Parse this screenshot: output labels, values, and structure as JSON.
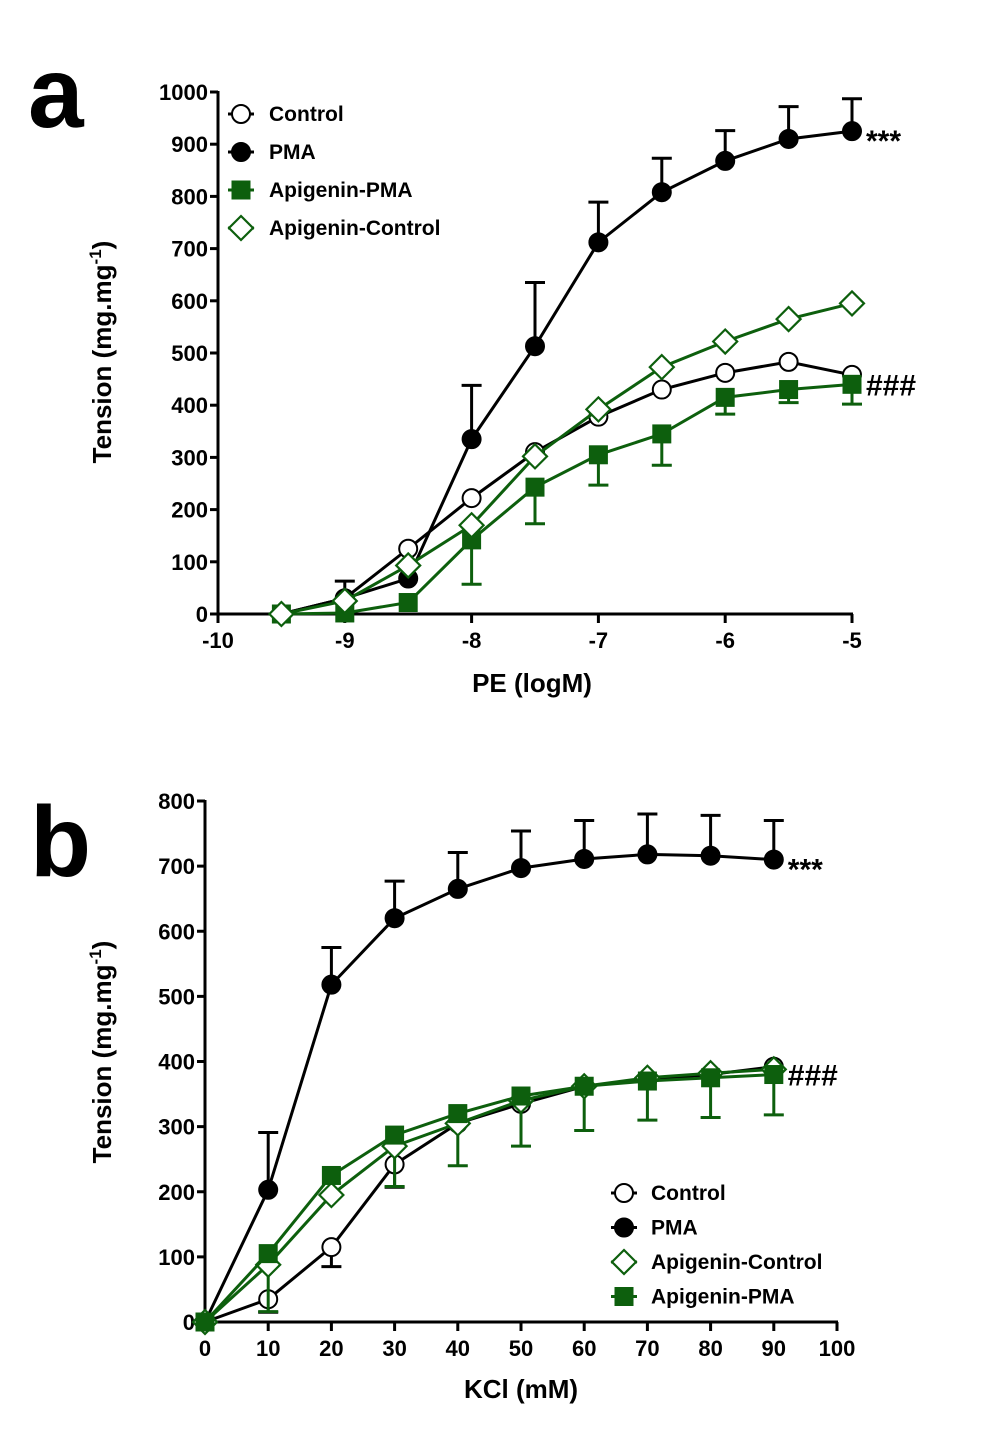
{
  "colors": {
    "black": "#000000",
    "green": "#0d5f0d",
    "white": "#ffffff"
  },
  "chart_data": [
    {
      "id": "a",
      "type": "line",
      "panel_label": "a",
      "xlabel": "PE (logM)",
      "ylabel": "Tension (mg.mg",
      "ylabel_sup": "-1",
      "ylabel_close": ")",
      "xlim": [
        -10,
        -5
      ],
      "ylim": [
        0,
        1000
      ],
      "xticks": [
        -10,
        -9,
        -8,
        -7,
        -6,
        -5
      ],
      "xtick_labels": [
        "-10",
        "-9",
        "-8",
        "-7",
        "-6",
        "-5"
      ],
      "yticks": [
        0,
        100,
        200,
        300,
        400,
        500,
        600,
        700,
        800,
        900,
        1000
      ],
      "ytick_labels": [
        "0",
        "100",
        "200",
        "300",
        "400",
        "500",
        "600",
        "700",
        "800",
        "900",
        "1000"
      ],
      "grid": false,
      "legend_position": "top-left",
      "legend_order": [
        "Control",
        "PMA",
        "Apigenin-PMA",
        "Apigenin-Control"
      ],
      "x": [
        -9.5,
        -9,
        -8.5,
        -8,
        -7.5,
        -7,
        -6.5,
        -6,
        -5.5,
        -5
      ],
      "series": [
        {
          "name": "Control",
          "marker": "circle-open",
          "color": "#000000",
          "values": [
            0,
            30,
            125,
            222,
            310,
            378,
            430,
            462,
            483,
            458
          ],
          "error": [
            0,
            0,
            0,
            0,
            0,
            0,
            0,
            0,
            0,
            0
          ],
          "error_dir": "up"
        },
        {
          "name": "PMA",
          "marker": "circle-filled",
          "color": "#000000",
          "values": [
            0,
            30,
            68,
            335,
            513,
            712,
            808,
            868,
            910,
            925
          ],
          "error": [
            0,
            33,
            0,
            103,
            122,
            77,
            65,
            58,
            62,
            62
          ],
          "error_dir": "up"
        },
        {
          "name": "Apigenin-PMA",
          "marker": "square-filled",
          "color": "#0d5f0d",
          "values": [
            0,
            2,
            22,
            142,
            243,
            305,
            345,
            415,
            430,
            440
          ],
          "error": [
            0,
            0,
            0,
            85,
            70,
            58,
            60,
            32,
            25,
            38
          ],
          "error_dir": "down"
        },
        {
          "name": "Apigenin-Control",
          "marker": "diamond-open",
          "color": "#0d5f0d",
          "values": [
            0,
            25,
            93,
            170,
            302,
            392,
            473,
            522,
            565,
            595
          ],
          "error": [
            0,
            0,
            0,
            0,
            0,
            0,
            0,
            0,
            0,
            0
          ],
          "error_dir": "down"
        }
      ],
      "annotations": [
        {
          "text": "***",
          "series": "PMA"
        },
        {
          "text": "###",
          "series": "Apigenin-PMA"
        }
      ]
    },
    {
      "id": "b",
      "type": "line",
      "panel_label": "b",
      "xlabel": "KCl (mM)",
      "ylabel": "Tension (mg.mg",
      "ylabel_sup": "-1",
      "ylabel_close": ")",
      "xlim": [
        0,
        100
      ],
      "ylim": [
        0,
        800
      ],
      "xticks": [
        0,
        10,
        20,
        30,
        40,
        50,
        60,
        70,
        80,
        90,
        100
      ],
      "xtick_labels": [
        "0",
        "10",
        "20",
        "30",
        "40",
        "50",
        "60",
        "70",
        "80",
        "90",
        "100"
      ],
      "yticks": [
        0,
        100,
        200,
        300,
        400,
        500,
        600,
        700,
        800
      ],
      "ytick_labels": [
        "0",
        "100",
        "200",
        "300",
        "400",
        "500",
        "600",
        "700",
        "800"
      ],
      "grid": false,
      "legend_position": "bottom-right",
      "legend_order": [
        "Control",
        "PMA",
        "Apigenin-Control",
        "Apigenin-PMA"
      ],
      "x": [
        0,
        10,
        20,
        30,
        40,
        50,
        60,
        70,
        80,
        90
      ],
      "series": [
        {
          "name": "Control",
          "marker": "circle-open",
          "color": "#000000",
          "values": [
            0,
            35,
            115,
            242,
            305,
            335,
            362,
            372,
            380,
            392
          ],
          "error": [
            0,
            20,
            30,
            35,
            0,
            0,
            0,
            0,
            0,
            0
          ],
          "error_dir": "down"
        },
        {
          "name": "PMA",
          "marker": "circle-filled",
          "color": "#000000",
          "values": [
            0,
            203,
            518,
            620,
            665,
            697,
            711,
            718,
            716,
            710
          ],
          "error": [
            0,
            88,
            57,
            57,
            56,
            57,
            59,
            62,
            62,
            60
          ],
          "error_dir": "up"
        },
        {
          "name": "Apigenin-Control",
          "marker": "diamond-open",
          "color": "#0d5f0d",
          "values": [
            0,
            88,
            195,
            270,
            305,
            340,
            362,
            375,
            382,
            388
          ],
          "error": [
            0,
            72,
            0,
            62,
            65,
            70,
            68,
            65,
            68,
            70
          ],
          "error_dir": "down"
        },
        {
          "name": "Apigenin-PMA",
          "marker": "square-filled",
          "color": "#0d5f0d",
          "values": [
            0,
            105,
            225,
            287,
            320,
            347,
            362,
            370,
            375,
            380
          ],
          "error": [
            0,
            0,
            0,
            0,
            0,
            0,
            0,
            0,
            0,
            0
          ],
          "error_dir": "down"
        }
      ],
      "annotations": [
        {
          "text": "***",
          "series": "PMA"
        },
        {
          "text": "###",
          "series": "Apigenin-PMA"
        }
      ]
    }
  ]
}
